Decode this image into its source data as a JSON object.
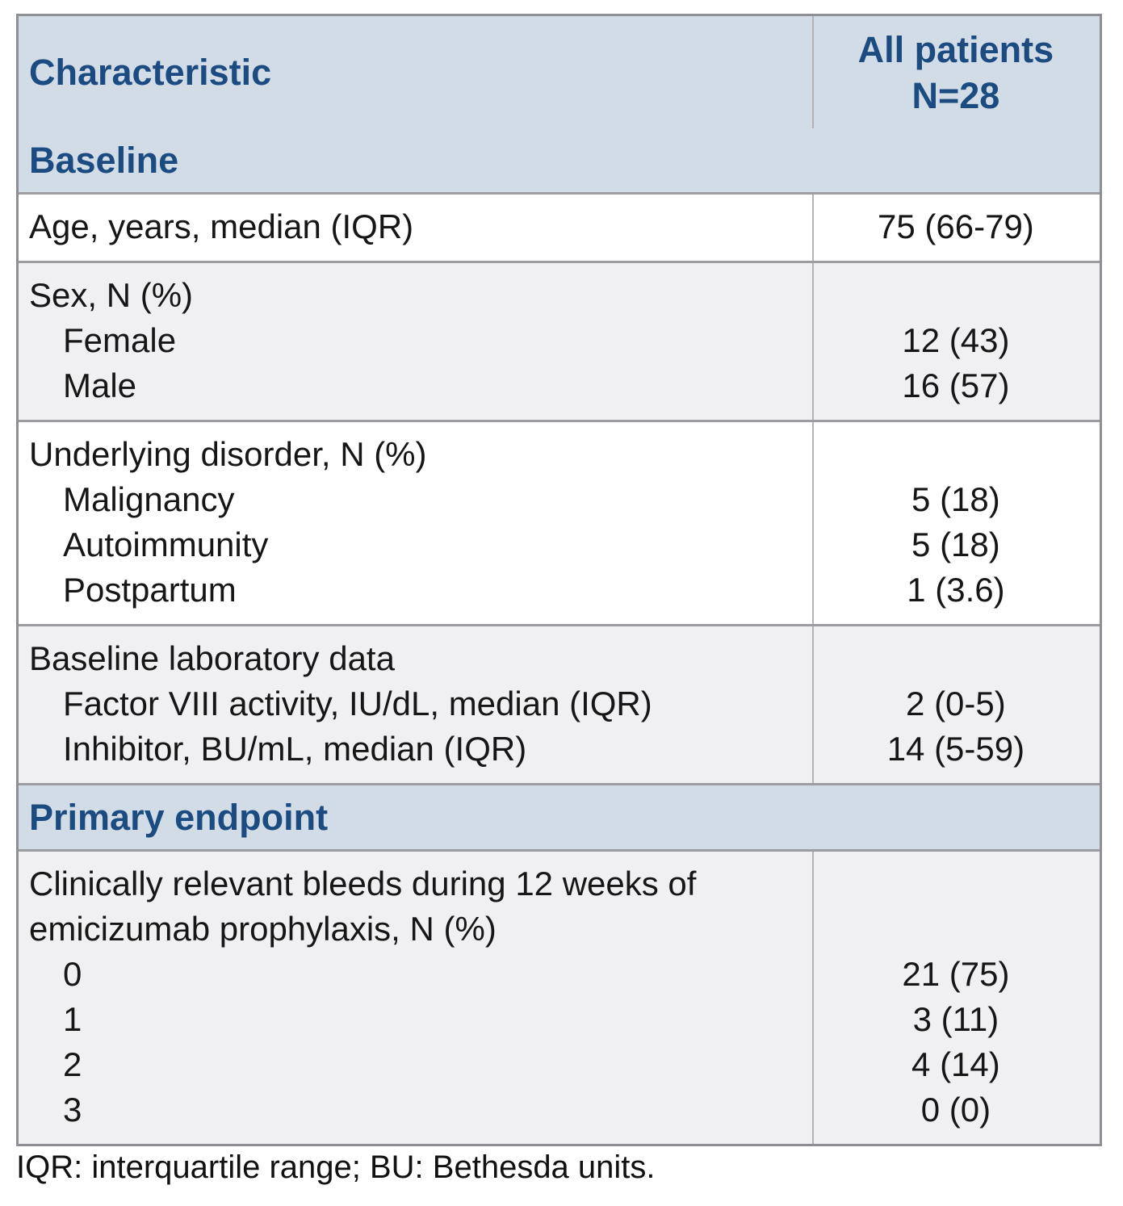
{
  "table": {
    "header": {
      "characteristic": "Characteristic",
      "all_patients_line1": "All patients",
      "all_patients_line2": "N=28"
    },
    "rows": [
      {
        "type": "section",
        "label": "Baseline"
      },
      {
        "type": "data",
        "shade": "white",
        "entries": [
          {
            "label": "Age, years, median (IQR)",
            "value": "75 (66-79)",
            "indent": false
          }
        ]
      },
      {
        "type": "data",
        "shade": "gray",
        "entries": [
          {
            "label": "Sex, N (%)",
            "value": "",
            "indent": false
          },
          {
            "label": "Female",
            "value": "12 (43)",
            "indent": true
          },
          {
            "label": "Male",
            "value": "16 (57)",
            "indent": true
          }
        ]
      },
      {
        "type": "data",
        "shade": "white",
        "entries": [
          {
            "label": "Underlying disorder, N (%)",
            "value": "",
            "indent": false
          },
          {
            "label": "Malignancy",
            "value": "5 (18)",
            "indent": true
          },
          {
            "label": "Autoimmunity",
            "value": "5 (18)",
            "indent": true
          },
          {
            "label": "Postpartum",
            "value": "1 (3.6)",
            "indent": true
          }
        ]
      },
      {
        "type": "data",
        "shade": "gray",
        "entries": [
          {
            "label": "Baseline laboratory data",
            "value": "",
            "indent": false
          },
          {
            "label": "Factor VIII activity, IU/dL, median (IQR)",
            "value": "2 (0-5)",
            "indent": true
          },
          {
            "label": "Inhibitor, BU/mL, median (IQR)",
            "value": "14 (5-59)",
            "indent": true
          }
        ]
      },
      {
        "type": "section",
        "label": "Primary endpoint"
      },
      {
        "type": "data",
        "shade": "gray",
        "entries": [
          {
            "label": "Clinically relevant bleeds during 12 weeks of emicizumab prophylaxis, N (%)",
            "value": "",
            "indent": false
          },
          {
            "label": "0",
            "value": "21 (75)",
            "indent": true
          },
          {
            "label": "1",
            "value": "3 (11)",
            "indent": true
          },
          {
            "label": "2",
            "value": "4 (14)",
            "indent": true
          },
          {
            "label": "3",
            "value": "0 (0)",
            "indent": true
          }
        ]
      }
    ]
  },
  "footnote": "IQR: interquartile range; BU: Bethesda units.",
  "colors": {
    "header_bg": "#d2dce6",
    "navy_text": "#1b4b80",
    "gray_row": "#f0f0f2",
    "white_row": "#ffffff",
    "outer_border": "#8e8e93",
    "row_separator": "#9c9ca1",
    "column_divider": "#b2b2b7"
  }
}
